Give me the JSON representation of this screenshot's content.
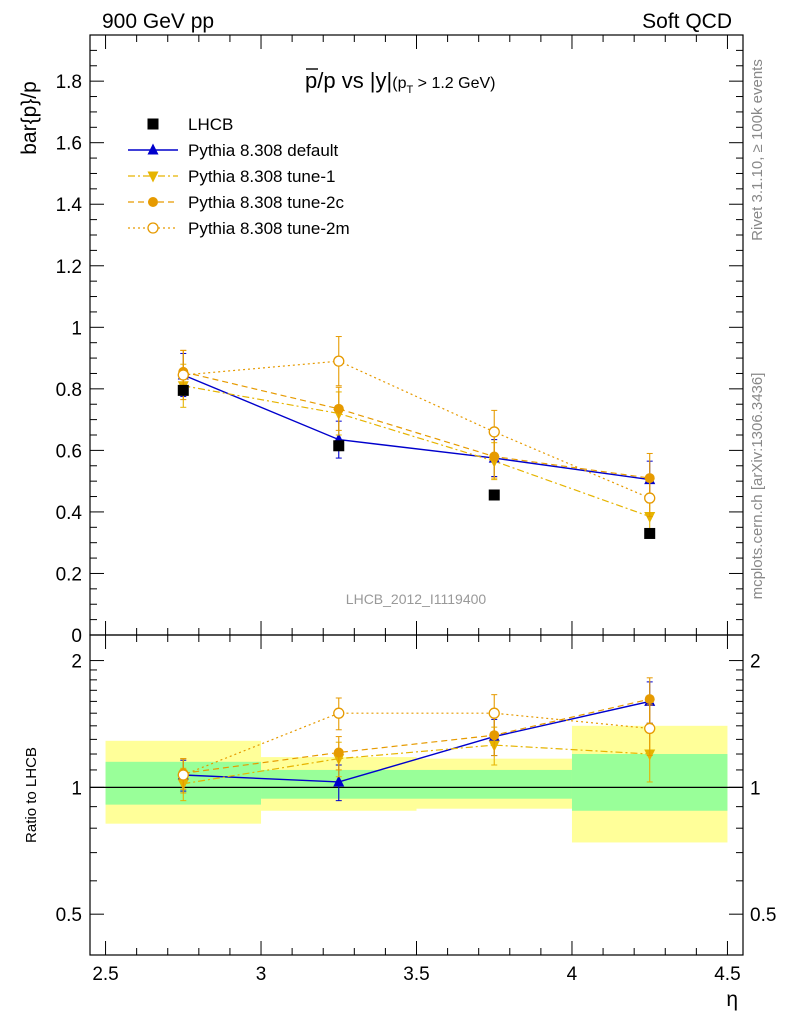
{
  "header": {
    "left": "900 GeV pp",
    "right": "Soft QCD"
  },
  "side_labels": {
    "rivet": "Rivet 3.1.10, ≥ 100k events",
    "mcplots": "mcplots.cern.ch [arXiv:1306.3436]"
  },
  "chart_data": [
    {
      "type": "scatter",
      "panel": "main",
      "title": "p̅/p vs |y|",
      "title_parts": {
        "main": "p/p vs |y|",
        "paren_open": "(p",
        "sub": "T",
        "paren_close": " > 1.2 GeV)"
      },
      "ylabel": "bar{p}/p",
      "xlim": [
        2.45,
        4.55
      ],
      "ylim": [
        0,
        1.95
      ],
      "y_ticks": [
        0,
        0.2,
        0.4,
        0.6,
        0.8,
        1,
        1.2,
        1.4,
        1.6,
        1.8
      ],
      "y_tick_labels": [
        "0",
        "0.2",
        "0.4",
        "0.6",
        "0.8",
        "1",
        "1.2",
        "1.4",
        "1.6",
        "1.8"
      ],
      "watermark": "LHCB_2012_I1119400",
      "legend_position": "top-left",
      "series": [
        {
          "name": "LHCB",
          "color": "#000000",
          "marker": "square",
          "line": "none",
          "x": [
            2.75,
            3.25,
            3.75,
            4.25
          ],
          "y": [
            0.795,
            0.615,
            0.455,
            0.33
          ],
          "yerr": [
            0.012,
            0.01,
            0.01,
            0.01
          ]
        },
        {
          "name": "Pythia 8.308 default",
          "color": "#0000cc",
          "marker": "triangle-up",
          "line": "solid",
          "x": [
            2.75,
            3.25,
            3.75,
            4.25
          ],
          "y": [
            0.845,
            0.635,
            0.575,
            0.505
          ],
          "yerr": [
            0.07,
            0.06,
            0.06,
            0.06
          ]
        },
        {
          "name": "Pythia 8.308 tune-1",
          "color": "#e6b400",
          "marker": "triangle-down",
          "line": "dashdot",
          "x": [
            2.75,
            3.25,
            3.75,
            4.25
          ],
          "y": [
            0.81,
            0.72,
            0.565,
            0.385
          ],
          "yerr": [
            0.07,
            0.07,
            0.06,
            0.06
          ]
        },
        {
          "name": "Pythia 8.308 tune-2c",
          "color": "#e69a00",
          "marker": "circle",
          "line": "dashed",
          "x": [
            2.75,
            3.25,
            3.75,
            4.25
          ],
          "y": [
            0.855,
            0.735,
            0.58,
            0.51
          ],
          "yerr": [
            0.07,
            0.07,
            0.07,
            0.08
          ]
        },
        {
          "name": "Pythia 8.308 tune-2m",
          "color": "#e69a00",
          "marker": "circle-open",
          "line": "dotted",
          "x": [
            2.75,
            3.25,
            3.75,
            4.25
          ],
          "y": [
            0.845,
            0.89,
            0.66,
            0.445
          ],
          "yerr": [
            0.08,
            0.08,
            0.07,
            0.06
          ]
        }
      ]
    },
    {
      "type": "scatter",
      "panel": "ratio",
      "ylabel": "Ratio to LHCB",
      "xlabel": "η",
      "xlim": [
        2.45,
        4.55
      ],
      "ylim": [
        0.4,
        2.3
      ],
      "log_y": true,
      "x_ticks": [
        2.5,
        3,
        3.5,
        4,
        4.5
      ],
      "x_tick_labels": [
        "2.5",
        "3",
        "3.5",
        "4",
        "4.5"
      ],
      "y_ticks": [
        0.5,
        1,
        2
      ],
      "y_tick_labels": [
        "0.5",
        "1",
        "2"
      ],
      "reference_line": 1,
      "bands": [
        {
          "x": [
            2.5,
            3.0
          ],
          "yellow": [
            0.82,
            1.29
          ],
          "green": [
            0.91,
            1.15
          ]
        },
        {
          "x": [
            3.0,
            3.5
          ],
          "yellow": [
            0.88,
            1.18
          ],
          "green": [
            0.94,
            1.1
          ]
        },
        {
          "x": [
            3.5,
            4.0
          ],
          "yellow": [
            0.89,
            1.17
          ],
          "green": [
            0.94,
            1.1
          ]
        },
        {
          "x": [
            4.0,
            4.5
          ],
          "yellow": [
            0.74,
            1.4
          ],
          "green": [
            0.88,
            1.2
          ]
        }
      ],
      "series": [
        {
          "name": "Pythia 8.308 default",
          "color": "#0000cc",
          "marker": "triangle-up",
          "line": "solid",
          "x": [
            2.75,
            3.25,
            3.75,
            4.25
          ],
          "y": [
            1.07,
            1.03,
            1.32,
            1.6
          ],
          "yerr": [
            0.09,
            0.1,
            0.13,
            0.18
          ]
        },
        {
          "name": "Pythia 8.308 tune-1",
          "color": "#e6b400",
          "marker": "triangle-down",
          "line": "dashdot",
          "x": [
            2.75,
            3.25,
            3.75,
            4.25
          ],
          "y": [
            1.02,
            1.17,
            1.26,
            1.2
          ],
          "yerr": [
            0.09,
            0.11,
            0.13,
            0.17
          ]
        },
        {
          "name": "Pythia 8.308 tune-2c",
          "color": "#e69a00",
          "marker": "circle",
          "line": "dashed",
          "x": [
            2.75,
            3.25,
            3.75,
            4.25
          ],
          "y": [
            1.08,
            1.21,
            1.33,
            1.62
          ],
          "yerr": [
            0.09,
            0.11,
            0.14,
            0.2
          ]
        },
        {
          "name": "Pythia 8.308 tune-2m",
          "color": "#e69a00",
          "marker": "circle-open",
          "line": "dotted",
          "x": [
            2.75,
            3.25,
            3.75,
            4.25
          ],
          "y": [
            1.07,
            1.5,
            1.5,
            1.38
          ],
          "yerr": [
            0.1,
            0.13,
            0.16,
            0.19
          ]
        }
      ]
    }
  ]
}
